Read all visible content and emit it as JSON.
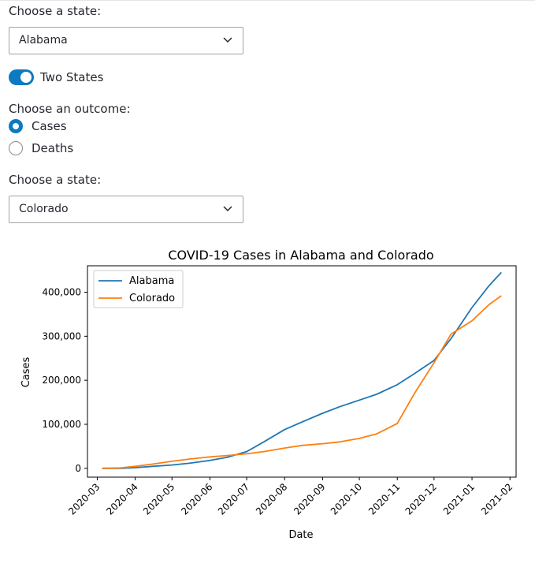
{
  "state_select_1": {
    "label": "Choose a state:",
    "value": "Alabama"
  },
  "two_states_toggle": {
    "label": "Two States",
    "checked": true
  },
  "outcome": {
    "label": "Choose an outcome:",
    "options": [
      "Cases",
      "Deaths"
    ],
    "selected": "Cases"
  },
  "state_select_2": {
    "label": "Choose a state:",
    "value": "Colorado"
  },
  "colors": {
    "accent": "#0c7ac1",
    "series_alabama": "#1f77b4",
    "series_colorado": "#ff7f0e"
  },
  "chart_data": {
    "type": "line",
    "title": "COVID-19 Cases in Alabama and Colorado",
    "xlabel": "Date",
    "ylabel": "Cases",
    "x_tick_labels": [
      "2020-03",
      "2020-04",
      "2020-05",
      "2020-06",
      "2020-07",
      "2020-08",
      "2020-09",
      "2020-10",
      "2020-11",
      "2020-12",
      "2021-01",
      "2021-02"
    ],
    "y_tick_labels": [
      "0",
      "100,000",
      "200,000",
      "300,000",
      "400,000"
    ],
    "ylim": [
      -20000,
      460000
    ],
    "xlim": [
      "2020-02-22",
      "2021-02-06"
    ],
    "legend_position": "upper left",
    "grid": false,
    "x": [
      "2020-03-05",
      "2020-03-20",
      "2020-04-01",
      "2020-04-15",
      "2020-05-01",
      "2020-05-15",
      "2020-06-01",
      "2020-06-15",
      "2020-07-01",
      "2020-07-15",
      "2020-08-01",
      "2020-08-15",
      "2020-09-01",
      "2020-09-15",
      "2020-10-01",
      "2020-10-15",
      "2020-11-01",
      "2020-11-15",
      "2020-12-01",
      "2020-12-15",
      "2021-01-01",
      "2021-01-15",
      "2021-01-25"
    ],
    "series": [
      {
        "name": "Alabama",
        "values": [
          0,
          0,
          1500,
          4500,
          7500,
          11500,
          18000,
          25000,
          38000,
          60000,
          88000,
          105000,
          125000,
          140000,
          155000,
          168000,
          190000,
          215000,
          245000,
          295000,
          365000,
          415000,
          445000
        ]
      },
      {
        "name": "Colorado",
        "values": [
          0,
          1000,
          4500,
          9500,
          16000,
          21000,
          26000,
          29000,
          33000,
          38000,
          46000,
          52000,
          56000,
          60000,
          68000,
          78000,
          102000,
          170000,
          240000,
          305000,
          335000,
          372000,
          392000
        ]
      }
    ]
  }
}
